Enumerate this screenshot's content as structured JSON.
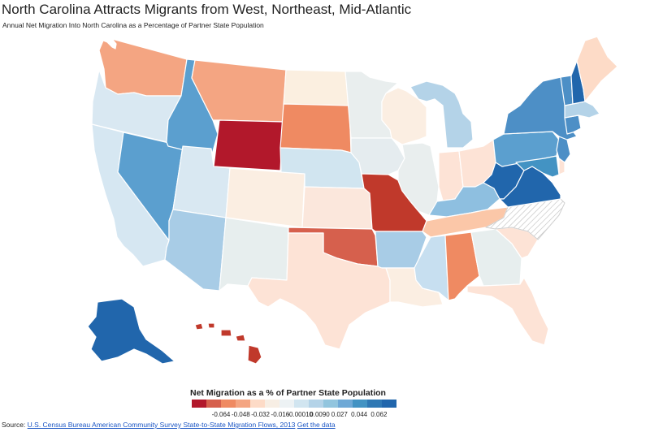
{
  "title": "North Carolina Attracts Migrants from West, Northeast, Mid-Atlantic",
  "subtitle": "Annual Net Migration Into North Carolina as a Percentage of Partner State Population",
  "legend": {
    "title": "Net Migration as a % of Partner State Population",
    "colors": [
      "#b2182b",
      "#d6604d",
      "#ef8a62",
      "#f4a582",
      "#fddbc7",
      "#f7eee4",
      "#edf2f4",
      "#d1e5f0",
      "#b4d3e8",
      "#92c5de",
      "#6fa9d6",
      "#4393c3",
      "#2f78b4",
      "#2166ac"
    ],
    "ticks": [
      "-0.064",
      "-0.048",
      "-0.032",
      "-0.016",
      "-0.00010",
      "0.0090",
      "0.027",
      "0.044",
      "0.062"
    ]
  },
  "source": {
    "prefix": "Source: ",
    "link_text": "U.S. Census Bureau American Community Survey State-to-State Migration Flows, 2013",
    "data_link_text": "Get the data"
  },
  "map_data": {
    "focus_state": "NC",
    "hatch_color": "#cccccc",
    "states": [
      {
        "id": "WA",
        "color": "#f4a582"
      },
      {
        "id": "OR",
        "color": "#d9e8f2"
      },
      {
        "id": "CA",
        "color": "#d6e7f2"
      },
      {
        "id": "NV",
        "color": "#5b9fcf"
      },
      {
        "id": "ID",
        "color": "#5b9fcf"
      },
      {
        "id": "MT",
        "color": "#f4a582"
      },
      {
        "id": "WY",
        "color": "#b2182b"
      },
      {
        "id": "UT",
        "color": "#d9e8f2"
      },
      {
        "id": "AZ",
        "color": "#a8cce6"
      },
      {
        "id": "CO",
        "color": "#fbeee2"
      },
      {
        "id": "NM",
        "color": "#e7eeee"
      },
      {
        "id": "ND",
        "color": "#fbefe0"
      },
      {
        "id": "SD",
        "color": "#ef8a62"
      },
      {
        "id": "NE",
        "color": "#d1e5f0"
      },
      {
        "id": "KS",
        "color": "#fbe7dc"
      },
      {
        "id": "OK",
        "color": "#d6604d"
      },
      {
        "id": "TX",
        "color": "#fde3d6"
      },
      {
        "id": "MN",
        "color": "#e9eeee"
      },
      {
        "id": "IA",
        "color": "#e5ecef"
      },
      {
        "id": "MO",
        "color": "#c0392b"
      },
      {
        "id": "AR",
        "color": "#a8cce6"
      },
      {
        "id": "LA",
        "color": "#fbeee2"
      },
      {
        "id": "WI",
        "color": "#fbeee2"
      },
      {
        "id": "IL",
        "color": "#e9eeee"
      },
      {
        "id": "MI",
        "color": "#b4d3e8"
      },
      {
        "id": "IN",
        "color": "#fde3d6"
      },
      {
        "id": "OH",
        "color": "#fde3d6"
      },
      {
        "id": "KY",
        "color": "#8ebfe0"
      },
      {
        "id": "TN",
        "color": "#fbc7a8"
      },
      {
        "id": "MS",
        "color": "#c7dff0"
      },
      {
        "id": "AL",
        "color": "#ef8a62"
      },
      {
        "id": "GA",
        "color": "#e7eeee"
      },
      {
        "id": "FL",
        "color": "#fde3d6"
      },
      {
        "id": "SC",
        "color": "#fde3d6"
      },
      {
        "id": "WV",
        "color": "#2166ac"
      },
      {
        "id": "VA",
        "color": "#2166ac"
      },
      {
        "id": "PA",
        "color": "#5b9fcf"
      },
      {
        "id": "NY",
        "color": "#4d8fc6"
      },
      {
        "id": "VT",
        "color": "#4d8fc6"
      },
      {
        "id": "NH",
        "color": "#2166ac"
      },
      {
        "id": "ME",
        "color": "#fddbc7"
      },
      {
        "id": "MA",
        "color": "#b4d3e8"
      },
      {
        "id": "CT",
        "color": "#4d8fc6"
      },
      {
        "id": "NJ",
        "color": "#4d8fc6"
      },
      {
        "id": "MD",
        "color": "#4393c3"
      },
      {
        "id": "DE",
        "color": "#fde3d6"
      },
      {
        "id": "AK",
        "color": "#2166ac"
      },
      {
        "id": "HI",
        "color": "#c0392b"
      }
    ]
  }
}
